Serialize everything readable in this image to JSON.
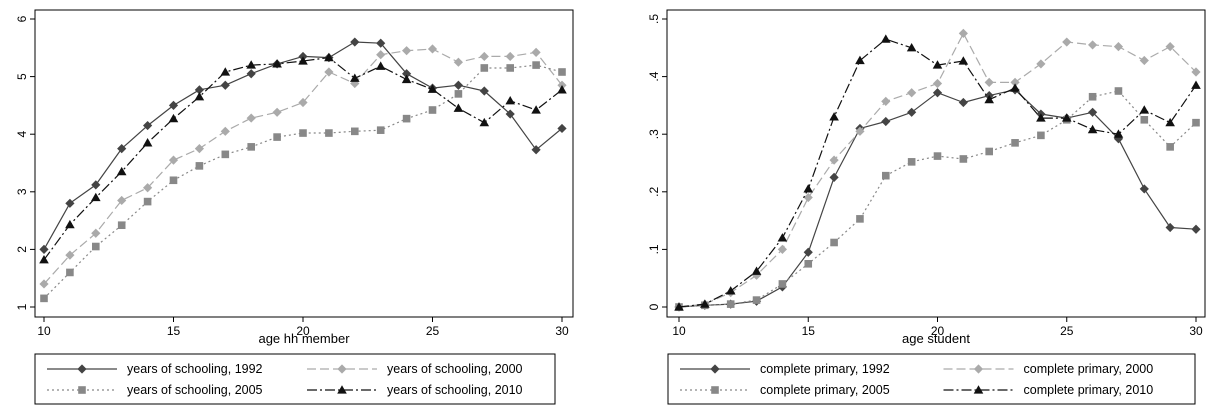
{
  "chart_data": [
    {
      "type": "line",
      "title": "",
      "xlabel": "age hh member",
      "ylabel": "",
      "xlim": [
        10,
        30
      ],
      "ylim": [
        1,
        6
      ],
      "xticks": [
        "10",
        "15",
        "20",
        "25",
        "30"
      ],
      "yticks": [
        "1",
        "2",
        "3",
        "4",
        "5",
        "6"
      ],
      "x": [
        10,
        11,
        12,
        13,
        14,
        15,
        16,
        17,
        18,
        19,
        20,
        21,
        22,
        23,
        24,
        25,
        26,
        27,
        28,
        29,
        30
      ],
      "legend_position": "bottom",
      "grid": false,
      "series": [
        {
          "name": "years of schooling, 1992",
          "style": "solid",
          "marker": "diamond",
          "color": "#444444",
          "values": [
            2.0,
            2.8,
            3.12,
            3.75,
            4.15,
            4.5,
            4.77,
            4.85,
            5.05,
            5.22,
            5.35,
            5.33,
            5.6,
            5.58,
            5.05,
            4.8,
            4.85,
            4.75,
            4.35,
            3.73,
            4.1
          ]
        },
        {
          "name": "years of schooling, 2000",
          "style": "dashed",
          "marker": "diamond",
          "color": "#aaaaaa",
          "values": [
            1.4,
            1.9,
            2.28,
            2.85,
            3.07,
            3.55,
            3.75,
            4.05,
            4.28,
            4.38,
            4.55,
            5.08,
            4.88,
            5.38,
            5.45,
            5.48,
            5.25,
            5.35,
            5.35,
            5.42,
            4.85
          ]
        },
        {
          "name": "years of schooling, 2005",
          "style": "dotted",
          "marker": "square",
          "color": "#888888",
          "values": [
            1.15,
            1.6,
            2.05,
            2.42,
            2.83,
            3.2,
            3.45,
            3.65,
            3.78,
            3.95,
            4.02,
            4.02,
            4.05,
            4.07,
            4.27,
            4.42,
            4.7,
            5.15,
            5.15,
            5.2,
            5.08
          ]
        },
        {
          "name": "years of schooling, 2010",
          "style": "dashdot",
          "marker": "triangle",
          "color": "#111111",
          "values": [
            1.82,
            2.43,
            2.9,
            3.35,
            3.85,
            4.27,
            4.65,
            5.08,
            5.2,
            5.22,
            5.27,
            5.33,
            4.97,
            5.18,
            4.95,
            4.78,
            4.45,
            4.2,
            4.58,
            4.42,
            4.77
          ]
        }
      ]
    },
    {
      "type": "line",
      "title": "",
      "xlabel": "age student",
      "ylabel": "",
      "xlim": [
        10,
        30
      ],
      "ylim": [
        0,
        0.5
      ],
      "xticks": [
        "10",
        "15",
        "20",
        "25",
        "30"
      ],
      "yticks": [
        "0",
        ".1",
        ".2",
        ".3",
        ".4",
        ".5"
      ],
      "x": [
        10,
        11,
        12,
        13,
        14,
        15,
        16,
        17,
        18,
        19,
        20,
        21,
        22,
        23,
        24,
        25,
        26,
        27,
        28,
        29,
        30
      ],
      "legend_position": "bottom",
      "grid": false,
      "series": [
        {
          "name": "complete primary, 1992",
          "style": "solid",
          "marker": "diamond",
          "color": "#444444",
          "values": [
            0.0,
            0.003,
            0.005,
            0.01,
            0.035,
            0.095,
            0.225,
            0.31,
            0.322,
            0.338,
            0.372,
            0.355,
            0.367,
            0.377,
            0.335,
            0.328,
            0.338,
            0.292,
            0.205,
            0.138,
            0.135
          ]
        },
        {
          "name": "complete primary, 2000",
          "style": "dashed",
          "marker": "diamond",
          "color": "#aaaaaa",
          "values": [
            0.0,
            0.005,
            0.025,
            0.055,
            0.1,
            0.19,
            0.255,
            0.305,
            0.357,
            0.372,
            0.388,
            0.475,
            0.39,
            0.39,
            0.422,
            0.46,
            0.455,
            0.452,
            0.428,
            0.452,
            0.408
          ]
        },
        {
          "name": "complete primary, 2005",
          "style": "dotted",
          "marker": "square",
          "color": "#888888",
          "values": [
            0.0,
            0.003,
            0.005,
            0.012,
            0.04,
            0.075,
            0.112,
            0.153,
            0.228,
            0.252,
            0.262,
            0.257,
            0.27,
            0.285,
            0.298,
            0.325,
            0.365,
            0.375,
            0.325,
            0.278,
            0.32
          ]
        },
        {
          "name": "complete primary, 2010",
          "style": "dashdot",
          "marker": "triangle",
          "color": "#111111",
          "values": [
            0.0,
            0.005,
            0.028,
            0.062,
            0.12,
            0.205,
            0.33,
            0.428,
            0.465,
            0.45,
            0.42,
            0.427,
            0.36,
            0.38,
            0.328,
            0.328,
            0.308,
            0.3,
            0.342,
            0.32,
            0.385
          ]
        }
      ]
    }
  ]
}
